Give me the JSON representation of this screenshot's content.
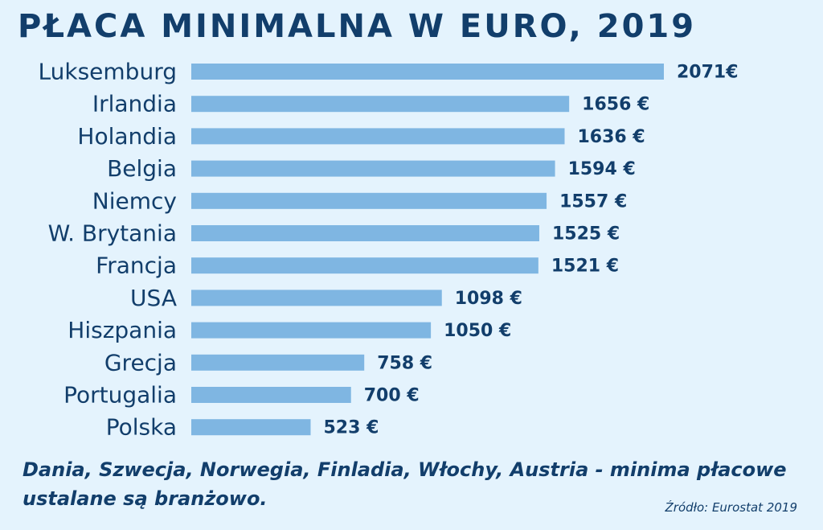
{
  "title": "PŁACA MINIMALNA W EURO, 2019",
  "note": "Dania, Szwecja, Norwegia, Finladia, Włochy, Austria - minima płacowe ustalane są branżowo.",
  "source": "Źródło: Eurostat 2019",
  "colors": {
    "bar": "#7fb6e2",
    "text": "#123e6b",
    "background": "#e4f3fd"
  },
  "chart_data": {
    "type": "bar",
    "orientation": "horizontal",
    "categories": [
      "Luksemburg",
      "Irlandia",
      "Holandia",
      "Belgia",
      "Niemcy",
      "W. Brytania",
      "Francja",
      "USA",
      "Hiszpania",
      "Grecja",
      "Portugalia",
      "Polska"
    ],
    "values": [
      2071,
      1656,
      1636,
      1594,
      1557,
      1525,
      1521,
      1098,
      1050,
      758,
      700,
      523
    ],
    "value_labels": [
      "2071€",
      "1656 €",
      "1636 €",
      "1594 €",
      "1557 €",
      "1525 €",
      "1521 €",
      "1098 €",
      "1050 €",
      "758 €",
      "700 €",
      "523 €"
    ],
    "title": "PŁACA MINIMALNA W EURO, 2019",
    "xlabel": "",
    "ylabel": "",
    "xlim": [
      0,
      2071
    ],
    "grid": false,
    "legend": "none"
  }
}
